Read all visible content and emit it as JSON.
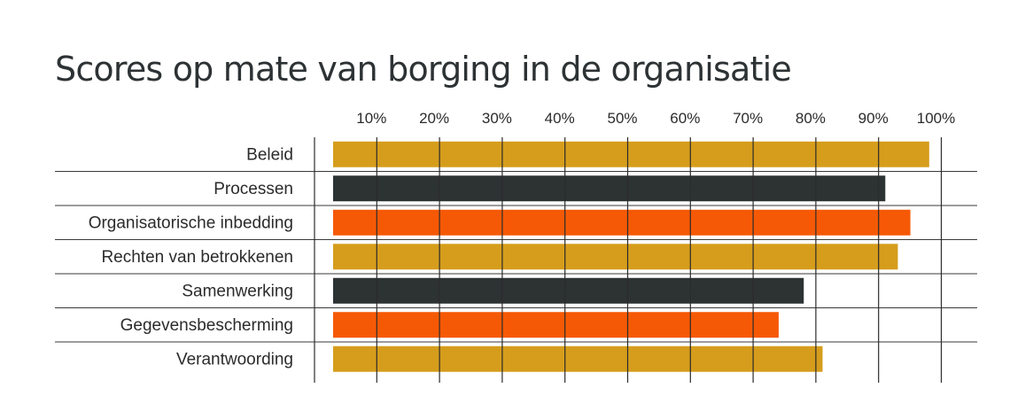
{
  "chart_data": {
    "type": "bar",
    "orientation": "horizontal",
    "title": "Scores op mate van borging in de organisatie",
    "xlabel": "",
    "ylabel": "",
    "xlim": [
      0,
      100
    ],
    "ticks": [
      "10%",
      "20%",
      "30%",
      "40%",
      "50%",
      "60%",
      "70%",
      "80%",
      "90%",
      "100%"
    ],
    "categories": [
      "Beleid",
      "Processen",
      "Organisatorische inbedding",
      "Rechten van betrokkenen",
      "Samenwerking",
      "Gegevensbescherming",
      "Verantwoording"
    ],
    "values": [
      98,
      91,
      95,
      93,
      78,
      74,
      81
    ],
    "colors": [
      "#d69d1c",
      "#2d3233",
      "#f65905",
      "#d69d1c",
      "#2d3233",
      "#f65905",
      "#d69d1c"
    ],
    "grid": true
  }
}
